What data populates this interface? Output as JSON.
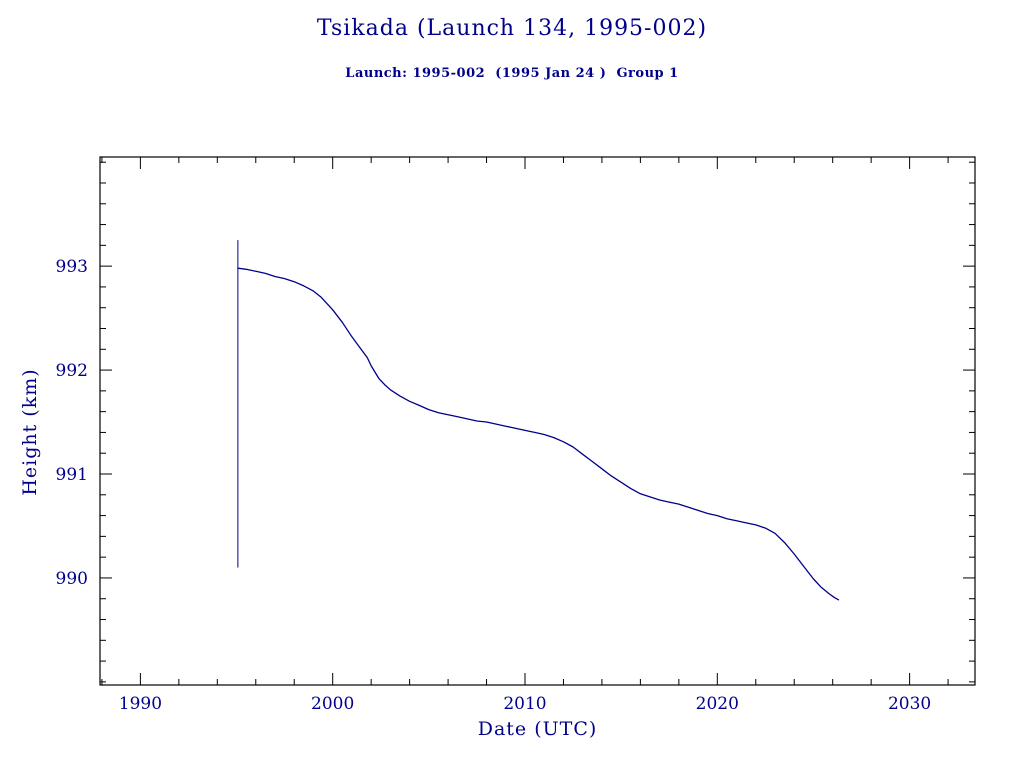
{
  "chart_data": {
    "type": "line",
    "title": "Tsikada (Launch 134, 1995-002)",
    "subtitle": "Launch: 1995-002  (1995 Jan 24 )  Group 1",
    "xlabel": "Date (UTC)",
    "ylabel": "Height (km)",
    "xlim": [
      1987.9,
      2033.4
    ],
    "ylim": [
      988.97,
      994.05
    ],
    "x_major_ticks": [
      1990,
      2000,
      2010,
      2020,
      2030
    ],
    "x_minor_step": 2,
    "y_major_ticks": [
      990,
      991,
      992,
      993
    ],
    "y_minor_step": 0.2,
    "line_color": "#00008b",
    "text_color": "#00008b",
    "frame_color": "#000000",
    "grid": false,
    "legend": "none",
    "launch_marker": {
      "x": 1995.07,
      "y_from": 990.1,
      "y_to": 993.25
    },
    "series": [
      {
        "name": "height-km",
        "points": [
          [
            1995.07,
            992.98
          ],
          [
            1995.5,
            992.97
          ],
          [
            1996,
            992.95
          ],
          [
            1996.5,
            992.93
          ],
          [
            1997,
            992.9
          ],
          [
            1997.5,
            992.88
          ],
          [
            1998,
            992.85
          ],
          [
            1998.5,
            992.81
          ],
          [
            1999,
            992.76
          ],
          [
            1999.4,
            992.7
          ],
          [
            2000,
            992.58
          ],
          [
            2000.5,
            992.46
          ],
          [
            2001,
            992.32
          ],
          [
            2001.4,
            992.22
          ],
          [
            2001.8,
            992.12
          ],
          [
            2002,
            992.04
          ],
          [
            2002.4,
            991.92
          ],
          [
            2002.7,
            991.86
          ],
          [
            2003,
            991.81
          ],
          [
            2003.5,
            991.75
          ],
          [
            2004,
            991.7
          ],
          [
            2004.5,
            991.66
          ],
          [
            2005,
            991.62
          ],
          [
            2005.5,
            991.59
          ],
          [
            2006,
            991.57
          ],
          [
            2006.5,
            991.55
          ],
          [
            2007,
            991.53
          ],
          [
            2007.5,
            991.51
          ],
          [
            2008,
            991.5
          ],
          [
            2008.5,
            991.48
          ],
          [
            2009,
            991.46
          ],
          [
            2009.5,
            991.44
          ],
          [
            2010,
            991.42
          ],
          [
            2010.5,
            991.4
          ],
          [
            2011,
            991.38
          ],
          [
            2011.5,
            991.35
          ],
          [
            2012,
            991.31
          ],
          [
            2012.5,
            991.26
          ],
          [
            2013,
            991.19
          ],
          [
            2013.5,
            991.12
          ],
          [
            2014,
            991.05
          ],
          [
            2014.5,
            990.98
          ],
          [
            2015,
            990.92
          ],
          [
            2015.5,
            990.86
          ],
          [
            2016,
            990.81
          ],
          [
            2016.5,
            990.78
          ],
          [
            2017,
            990.75
          ],
          [
            2017.5,
            990.73
          ],
          [
            2018,
            990.71
          ],
          [
            2018.5,
            990.68
          ],
          [
            2019,
            990.65
          ],
          [
            2019.5,
            990.62
          ],
          [
            2020,
            990.6
          ],
          [
            2020.5,
            990.57
          ],
          [
            2021,
            990.55
          ],
          [
            2021.5,
            990.53
          ],
          [
            2022,
            990.51
          ],
          [
            2022.5,
            990.48
          ],
          [
            2023,
            990.43
          ],
          [
            2023.5,
            990.34
          ],
          [
            2024,
            990.23
          ],
          [
            2024.5,
            990.11
          ],
          [
            2025,
            989.99
          ],
          [
            2025.4,
            989.91
          ],
          [
            2025.8,
            989.85
          ],
          [
            2026.1,
            989.81
          ],
          [
            2026.3,
            989.79
          ]
        ]
      }
    ]
  }
}
